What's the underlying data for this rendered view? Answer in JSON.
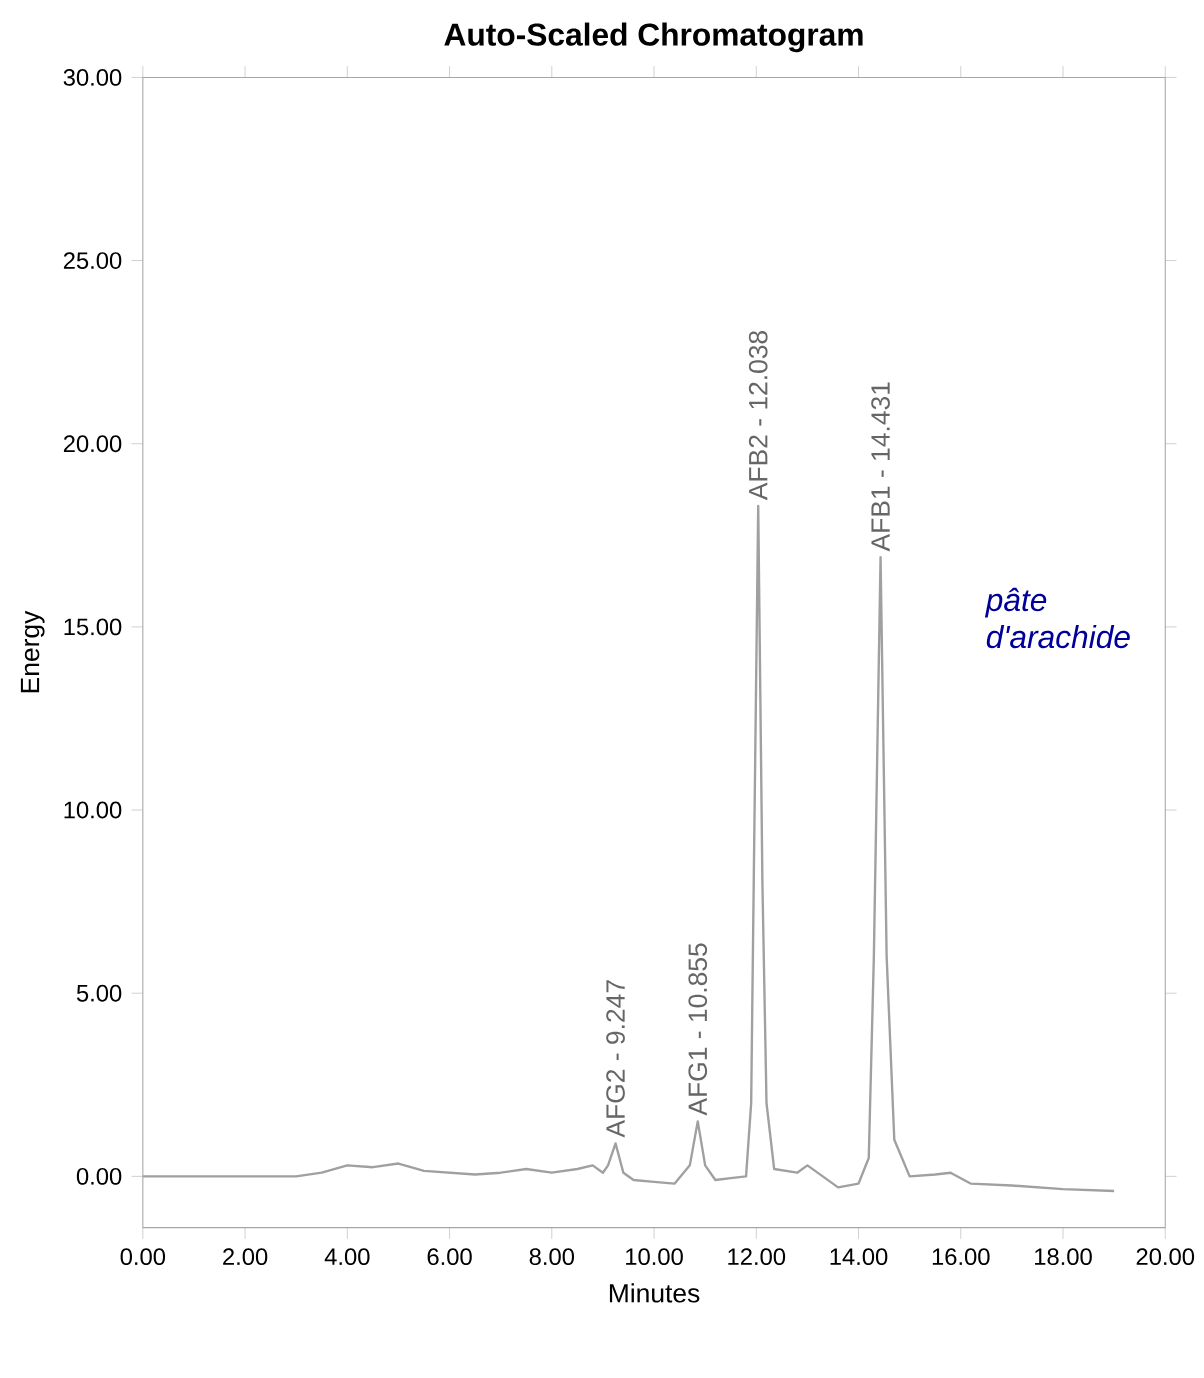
{
  "chart_data": {
    "type": "line",
    "title": "Auto-Scaled Chromatogram",
    "xlabel": "Minutes",
    "ylabel": "Energy",
    "xlim": [
      0,
      20
    ],
    "ylim": [
      -1.4,
      30
    ],
    "xticks": [
      {
        "value": 0,
        "label": "0.00"
      },
      {
        "value": 2,
        "label": "2.00"
      },
      {
        "value": 4,
        "label": "4.00"
      },
      {
        "value": 6,
        "label": "6.00"
      },
      {
        "value": 8,
        "label": "8.00"
      },
      {
        "value": 10,
        "label": "10.00"
      },
      {
        "value": 12,
        "label": "12.00"
      },
      {
        "value": 14,
        "label": "14.00"
      },
      {
        "value": 16,
        "label": "16.00"
      },
      {
        "value": 18,
        "label": "18.00"
      },
      {
        "value": 20,
        "label": "20.00"
      }
    ],
    "yticks": [
      {
        "value": 0,
        "label": "0.00"
      },
      {
        "value": 5,
        "label": "5.00"
      },
      {
        "value": 10,
        "label": "10.00"
      },
      {
        "value": 15,
        "label": "15.00"
      },
      {
        "value": 20,
        "label": "20.00"
      },
      {
        "value": 25,
        "label": "25.00"
      },
      {
        "value": 30,
        "label": "30.00"
      }
    ],
    "series": [
      {
        "color": "#a0a0a0",
        "x": [
          0,
          1,
          2,
          3,
          3.5,
          4,
          4.5,
          5,
          5.5,
          6.5,
          7,
          7.5,
          8,
          8.5,
          8.8,
          9.0,
          9.1,
          9.247,
          9.4,
          9.6,
          10.0,
          10.4,
          10.7,
          10.855,
          11.0,
          11.2,
          11.5,
          11.8,
          11.9,
          11.95,
          12.038,
          12.12,
          12.2,
          12.35,
          12.8,
          13.0,
          13.3,
          13.6,
          14.0,
          14.2,
          14.3,
          14.431,
          14.55,
          14.7,
          15.0,
          15.5,
          15.8,
          16.2,
          17,
          18,
          19
        ],
        "values": [
          0,
          0,
          0,
          0,
          0.1,
          0.3,
          0.25,
          0.35,
          0.15,
          0.05,
          0.1,
          0.2,
          0.1,
          0.2,
          0.3,
          0.1,
          0.3,
          0.9,
          0.1,
          -0.1,
          -0.15,
          -0.2,
          0.3,
          1.5,
          0.3,
          -0.1,
          -0.05,
          0,
          2,
          8,
          18.3,
          8,
          2,
          0.2,
          0.1,
          0.3,
          0,
          -0.3,
          -0.2,
          0.5,
          6,
          16.9,
          6,
          1,
          0,
          0.05,
          0.1,
          -0.2,
          -0.25,
          -0.35,
          -0.4
        ]
      }
    ],
    "annotations": [
      {
        "text": "AFG2 - 9.247",
        "x": 9.247,
        "y": 0.9
      },
      {
        "text": "AFG1 - 10.855",
        "x": 10.855,
        "y": 1.5
      },
      {
        "text": "AFB2 - 12.038",
        "x": 12.038,
        "y": 18.3
      },
      {
        "text": "AFB1 - 14.431",
        "x": 14.431,
        "y": 16.9
      },
      "pâte d'arachide"
    ],
    "grid": false,
    "marker": "none",
    "line_style": "solid"
  }
}
